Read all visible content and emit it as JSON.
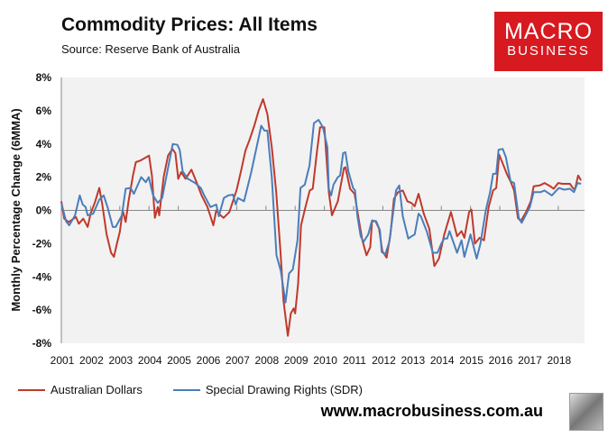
{
  "header": {
    "title": "Commodity Prices: All Items",
    "subtitle": "Source: Reserve Bank of Australia"
  },
  "logo": {
    "line1": "MACRO",
    "line2": "BUSINESS",
    "color": "#d71920"
  },
  "footer": {
    "url": "www.macrobusiness.com.au"
  },
  "chart_data": {
    "type": "line",
    "title": "Commodity Prices: All Items",
    "ylabel": "Monthly Percentage Change (6MMA)",
    "xlabel": "",
    "ylim": [
      -8,
      8
    ],
    "xlim": [
      2001,
      2018.9
    ],
    "yticks": [
      "-8%",
      "-6%",
      "-4%",
      "-2%",
      "0%",
      "2%",
      "4%",
      "6%",
      "8%"
    ],
    "ytick_values": [
      -8,
      -6,
      -4,
      -2,
      0,
      2,
      4,
      6,
      8
    ],
    "xticks": [
      "2001",
      "2002",
      "2003",
      "2004",
      "2005",
      "2006",
      "2007",
      "2008",
      "2009",
      "2010",
      "2011",
      "2012",
      "2013",
      "2014",
      "2015",
      "2016",
      "2017",
      "2018"
    ],
    "grid": false,
    "legend_placement": "bottom",
    "series": [
      {
        "name": "Australian Dollars",
        "color": "#c0392b",
        "points": [
          [
            2001.0,
            0.55
          ],
          [
            2001.1,
            -0.5
          ],
          [
            2001.25,
            -0.7
          ],
          [
            2001.5,
            -0.4
          ],
          [
            2001.6,
            -0.8
          ],
          [
            2001.75,
            -0.5
          ],
          [
            2001.9,
            -1.0
          ],
          [
            2002.0,
            -0.2
          ],
          [
            2002.15,
            0.5
          ],
          [
            2002.3,
            1.35
          ],
          [
            2002.4,
            0.35
          ],
          [
            2002.55,
            -1.45
          ],
          [
            2002.7,
            -2.55
          ],
          [
            2002.8,
            -2.8
          ],
          [
            2002.9,
            -2.0
          ],
          [
            2003.0,
            -1.3
          ],
          [
            2003.1,
            0
          ],
          [
            2003.2,
            -0.7
          ],
          [
            2003.3,
            0.55
          ],
          [
            2003.45,
            2.1
          ],
          [
            2003.55,
            2.9
          ],
          [
            2003.7,
            3.0
          ],
          [
            2004.0,
            3.3
          ],
          [
            2004.1,
            2.1
          ],
          [
            2004.2,
            -0.45
          ],
          [
            2004.3,
            0.2
          ],
          [
            2004.35,
            -0.3
          ],
          [
            2004.5,
            2.0
          ],
          [
            2004.65,
            3.3
          ],
          [
            2004.8,
            3.7
          ],
          [
            2004.9,
            3.45
          ],
          [
            2005.0,
            1.9
          ],
          [
            2005.1,
            2.3
          ],
          [
            2005.25,
            1.9
          ],
          [
            2005.45,
            2.45
          ],
          [
            2005.6,
            1.8
          ],
          [
            2005.8,
            0.9
          ],
          [
            2006.0,
            0.2
          ],
          [
            2006.1,
            -0.35
          ],
          [
            2006.2,
            -0.9
          ],
          [
            2006.3,
            0
          ],
          [
            2006.45,
            -0.3
          ],
          [
            2006.55,
            -0.45
          ],
          [
            2006.75,
            -0.1
          ],
          [
            2007.0,
            1.25
          ],
          [
            2007.15,
            2.4
          ],
          [
            2007.3,
            3.6
          ],
          [
            2007.45,
            4.3
          ],
          [
            2007.6,
            5.1
          ],
          [
            2007.75,
            6.0
          ],
          [
            2007.9,
            6.7
          ],
          [
            2008.05,
            5.8
          ],
          [
            2008.2,
            3.8
          ],
          [
            2008.35,
            1.1
          ],
          [
            2008.5,
            -2.55
          ],
          [
            2008.6,
            -5.45
          ],
          [
            2008.75,
            -7.55
          ],
          [
            2008.85,
            -6.2
          ],
          [
            2008.95,
            -5.9
          ],
          [
            2009.0,
            -6.2
          ],
          [
            2009.1,
            -4.4
          ],
          [
            2009.2,
            -0.9
          ],
          [
            2009.35,
            0.2
          ],
          [
            2009.5,
            1.2
          ],
          [
            2009.6,
            1.3
          ],
          [
            2009.75,
            3.6
          ],
          [
            2009.85,
            5.0
          ],
          [
            2010.0,
            5.0
          ],
          [
            2010.15,
            1.1
          ],
          [
            2010.26,
            -0.3
          ],
          [
            2010.46,
            0.55
          ],
          [
            2010.67,
            2.55
          ],
          [
            2010.72,
            2.6
          ],
          [
            2010.88,
            1.3
          ],
          [
            2011.03,
            1.0
          ],
          [
            2011.19,
            -0.7
          ],
          [
            2011.3,
            -1.8
          ],
          [
            2011.44,
            -2.7
          ],
          [
            2011.57,
            -2.2
          ],
          [
            2011.63,
            -0.65
          ],
          [
            2011.75,
            -0.65
          ],
          [
            2011.87,
            -1.1
          ],
          [
            2011.98,
            -2.45
          ],
          [
            2012.13,
            -2.85
          ],
          [
            2012.26,
            -1.45
          ],
          [
            2012.38,
            0.7
          ],
          [
            2012.52,
            1.1
          ],
          [
            2012.68,
            1.2
          ],
          [
            2012.84,
            0.55
          ],
          [
            2012.97,
            0.45
          ],
          [
            2013.09,
            0.25
          ],
          [
            2013.22,
            1.0
          ],
          [
            2013.4,
            -0.2
          ],
          [
            2013.59,
            -1.1
          ],
          [
            2013.76,
            -3.35
          ],
          [
            2013.92,
            -2.9
          ],
          [
            2014.1,
            -1.45
          ],
          [
            2014.33,
            -0.1
          ],
          [
            2014.54,
            -1.55
          ],
          [
            2014.69,
            -1.25
          ],
          [
            2014.79,
            -1.65
          ],
          [
            2014.95,
            -0.1
          ],
          [
            2015.03,
            0.05
          ],
          [
            2015.15,
            -2.0
          ],
          [
            2015.31,
            -1.65
          ],
          [
            2015.46,
            -1.8
          ],
          [
            2015.62,
            0.2
          ],
          [
            2015.77,
            1.2
          ],
          [
            2015.88,
            1.35
          ],
          [
            2015.98,
            3.35
          ],
          [
            2016.13,
            2.7
          ],
          [
            2016.24,
            2.2
          ],
          [
            2016.39,
            1.65
          ],
          [
            2016.49,
            1.2
          ],
          [
            2016.62,
            -0.45
          ],
          [
            2016.72,
            -0.65
          ],
          [
            2016.9,
            -0.1
          ],
          [
            2017.06,
            0.55
          ],
          [
            2017.16,
            1.45
          ],
          [
            2017.37,
            1.5
          ],
          [
            2017.53,
            1.65
          ],
          [
            2017.73,
            1.45
          ],
          [
            2017.84,
            1.3
          ],
          [
            2018.0,
            1.65
          ],
          [
            2018.14,
            1.6
          ],
          [
            2018.4,
            1.6
          ],
          [
            2018.5,
            1.35
          ],
          [
            2018.57,
            1.25
          ],
          [
            2018.68,
            2.1
          ],
          [
            2018.78,
            1.8
          ]
        ]
      },
      {
        "name": "Special Drawing Rights (SDR)",
        "color": "#4a7ebb",
        "points": [
          [
            2001.0,
            0.45
          ],
          [
            2001.16,
            -0.65
          ],
          [
            2001.27,
            -0.9
          ],
          [
            2001.47,
            -0.3
          ],
          [
            2001.63,
            0.9
          ],
          [
            2001.73,
            0.35
          ],
          [
            2001.83,
            0.2
          ],
          [
            2001.9,
            -0.3
          ],
          [
            2002.09,
            -0.2
          ],
          [
            2002.3,
            0.65
          ],
          [
            2002.45,
            0.9
          ],
          [
            2002.58,
            0.2
          ],
          [
            2002.76,
            -1.0
          ],
          [
            2002.86,
            -1.0
          ],
          [
            2003.07,
            -0.3
          ],
          [
            2003.2,
            1.3
          ],
          [
            2003.37,
            1.35
          ],
          [
            2003.48,
            1.0
          ],
          [
            2003.73,
            2.0
          ],
          [
            2003.89,
            1.7
          ],
          [
            2003.99,
            2.0
          ],
          [
            2004.14,
            0.9
          ],
          [
            2004.3,
            0.45
          ],
          [
            2004.45,
            0.75
          ],
          [
            2004.64,
            2.45
          ],
          [
            2004.81,
            4.0
          ],
          [
            2004.97,
            3.95
          ],
          [
            2005.05,
            3.65
          ],
          [
            2005.15,
            2.35
          ],
          [
            2005.33,
            1.9
          ],
          [
            2005.58,
            1.65
          ],
          [
            2005.77,
            1.35
          ],
          [
            2005.89,
            0.9
          ],
          [
            2006.1,
            0.2
          ],
          [
            2006.3,
            0.35
          ],
          [
            2006.39,
            -0.35
          ],
          [
            2006.56,
            0.75
          ],
          [
            2006.71,
            0.9
          ],
          [
            2006.87,
            0.95
          ],
          [
            2006.97,
            0.35
          ],
          [
            2007.04,
            0.75
          ],
          [
            2007.25,
            0.55
          ],
          [
            2007.49,
            2.25
          ],
          [
            2007.84,
            5.1
          ],
          [
            2007.95,
            4.8
          ],
          [
            2008.05,
            4.8
          ],
          [
            2008.2,
            2.0
          ],
          [
            2008.36,
            -2.7
          ],
          [
            2008.51,
            -3.65
          ],
          [
            2008.67,
            -5.55
          ],
          [
            2008.79,
            -3.8
          ],
          [
            2008.92,
            -3.55
          ],
          [
            2009.08,
            -1.8
          ],
          [
            2009.18,
            1.35
          ],
          [
            2009.33,
            1.55
          ],
          [
            2009.49,
            2.7
          ],
          [
            2009.64,
            5.25
          ],
          [
            2009.8,
            5.45
          ],
          [
            2009.95,
            5.0
          ],
          [
            2010.1,
            3.8
          ],
          [
            2010.15,
            1.3
          ],
          [
            2010.23,
            0.9
          ],
          [
            2010.31,
            1.55
          ],
          [
            2010.46,
            2.0
          ],
          [
            2010.54,
            2.1
          ],
          [
            2010.64,
            3.45
          ],
          [
            2010.72,
            3.5
          ],
          [
            2010.82,
            2.35
          ],
          [
            2010.98,
            1.35
          ],
          [
            2011.05,
            1.2
          ],
          [
            2011.13,
            -0.35
          ],
          [
            2011.24,
            -1.55
          ],
          [
            2011.34,
            -1.9
          ],
          [
            2011.5,
            -1.45
          ],
          [
            2011.63,
            -0.6
          ],
          [
            2011.77,
            -0.65
          ],
          [
            2011.9,
            -1.2
          ],
          [
            2011.96,
            -2.5
          ],
          [
            2012.08,
            -2.65
          ],
          [
            2012.22,
            -1.9
          ],
          [
            2012.45,
            1.2
          ],
          [
            2012.56,
            1.5
          ],
          [
            2012.68,
            -0.35
          ],
          [
            2012.87,
            -1.7
          ],
          [
            2012.99,
            -1.55
          ],
          [
            2013.09,
            -1.45
          ],
          [
            2013.22,
            -0.2
          ],
          [
            2013.3,
            -0.35
          ],
          [
            2013.5,
            -1.25
          ],
          [
            2013.71,
            -2.55
          ],
          [
            2013.87,
            -2.55
          ],
          [
            2014.0,
            -2.0
          ],
          [
            2014.1,
            -1.7
          ],
          [
            2014.2,
            -1.7
          ],
          [
            2014.28,
            -1.25
          ],
          [
            2014.54,
            -2.55
          ],
          [
            2014.69,
            -1.8
          ],
          [
            2014.79,
            -2.8
          ],
          [
            2015.0,
            -1.45
          ],
          [
            2015.21,
            -2.9
          ],
          [
            2015.34,
            -2.0
          ],
          [
            2015.52,
            0
          ],
          [
            2015.67,
            1.1
          ],
          [
            2015.77,
            2.2
          ],
          [
            2015.88,
            2.2
          ],
          [
            2015.96,
            3.65
          ],
          [
            2016.1,
            3.7
          ],
          [
            2016.21,
            3.2
          ],
          [
            2016.37,
            1.75
          ],
          [
            2016.49,
            1.65
          ],
          [
            2016.65,
            -0.45
          ],
          [
            2016.75,
            -0.75
          ],
          [
            2017.03,
            0.2
          ],
          [
            2017.16,
            1.1
          ],
          [
            2017.4,
            1.1
          ],
          [
            2017.53,
            1.2
          ],
          [
            2017.78,
            0.9
          ],
          [
            2018.02,
            1.35
          ],
          [
            2018.2,
            1.25
          ],
          [
            2018.4,
            1.3
          ],
          [
            2018.54,
            1.1
          ],
          [
            2018.66,
            1.65
          ],
          [
            2018.78,
            1.6
          ]
        ]
      }
    ]
  }
}
